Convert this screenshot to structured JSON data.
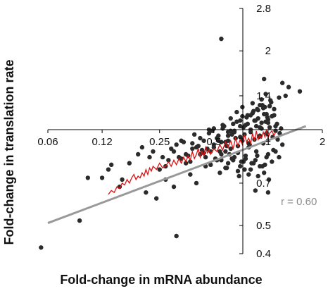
{
  "chart_data": {
    "type": "scatter",
    "title": "",
    "xlabel": "Fold-change in mRNA abundance",
    "ylabel": "Fold-change in translation rate",
    "x_scale": "log2",
    "y_scale": "log2",
    "xlim": [
      0.06,
      2
    ],
    "ylim": [
      0.4,
      2.8
    ],
    "x_ticks": [
      0.06,
      0.12,
      0.25,
      0.5,
      1,
      2
    ],
    "x_tick_labels": [
      "0.06",
      "0.12",
      "0.25",
      "0.5",
      "1",
      "2"
    ],
    "y_ticks": [
      0.4,
      0.5,
      0.7,
      1,
      1.4,
      2,
      2.8
    ],
    "y_tick_labels": [
      "0.4",
      "0.5",
      "0.7",
      "1",
      "1.4",
      "2",
      "2.8"
    ],
    "annotation": "r = 0.60",
    "grid": false,
    "colors": {
      "points": "#2b2b2b",
      "fit_line": "#999999",
      "running_mean": "#dd1111"
    },
    "fit_line": {
      "x": [
        0.06,
        1.62
      ],
      "y": [
        0.51,
        1.1
      ]
    },
    "running_mean": {
      "x": [
        0.13,
        0.135,
        0.14,
        0.145,
        0.15,
        0.155,
        0.16,
        0.165,
        0.17,
        0.175,
        0.18,
        0.185,
        0.19,
        0.195,
        0.2,
        0.205,
        0.21,
        0.215,
        0.22,
        0.225,
        0.23,
        0.24,
        0.25,
        0.26,
        0.27,
        0.28,
        0.29,
        0.3,
        0.31,
        0.32,
        0.33,
        0.34,
        0.35,
        0.36,
        0.37,
        0.38,
        0.39,
        0.4,
        0.41,
        0.42,
        0.43,
        0.44,
        0.45,
        0.46,
        0.47,
        0.48,
        0.5,
        0.52,
        0.54,
        0.56,
        0.58,
        0.6,
        0.62,
        0.64,
        0.66,
        0.68,
        0.7,
        0.72,
        0.74,
        0.76,
        0.78,
        0.8,
        0.82,
        0.84,
        0.86,
        0.88,
        0.9,
        0.92,
        0.94,
        0.96,
        0.98,
        1.0,
        1.02,
        1.05,
        1.08,
        1.1
      ],
      "y": [
        0.64,
        0.66,
        0.65,
        0.68,
        0.67,
        0.7,
        0.69,
        0.72,
        0.7,
        0.73,
        0.75,
        0.72,
        0.74,
        0.73,
        0.76,
        0.74,
        0.78,
        0.75,
        0.79,
        0.77,
        0.8,
        0.78,
        0.82,
        0.79,
        0.8,
        0.83,
        0.8,
        0.84,
        0.81,
        0.85,
        0.82,
        0.86,
        0.83,
        0.87,
        0.84,
        0.9,
        0.85,
        0.88,
        0.92,
        0.86,
        0.9,
        0.87,
        0.93,
        0.89,
        0.91,
        0.88,
        0.92,
        0.9,
        0.95,
        0.91,
        0.97,
        0.93,
        0.98,
        0.92,
        1.0,
        0.94,
        0.99,
        0.95,
        1.03,
        0.97,
        1.0,
        0.96,
        1.04,
        0.98,
        1.06,
        0.99,
        1.02,
        1.0,
        1.05,
        1.01,
        1.07,
        1.0,
        1.04,
        1.06,
        1.02,
        1.05
      ]
    },
    "points": {
      "x": [
        0.055,
        0.09,
        0.1,
        0.12,
        0.13,
        0.135,
        0.15,
        0.155,
        0.17,
        0.19,
        0.2,
        0.21,
        0.22,
        0.23,
        0.24,
        0.25,
        0.26,
        0.27,
        0.28,
        0.3,
        0.31,
        0.31,
        0.33,
        0.35,
        0.37,
        0.38,
        0.4,
        0.42,
        0.45,
        0.5,
        0.55,
        0.58,
        0.6,
        0.65,
        0.7,
        0.75,
        0.8,
        0.85,
        0.9,
        0.95,
        1.0,
        1.1,
        1.2,
        1.25,
        1.3,
        1.5,
        0.5,
        0.52,
        0.54,
        0.56,
        0.58,
        0.6,
        0.62,
        0.64,
        0.66,
        0.68,
        0.7,
        0.72,
        0.74,
        0.76,
        0.78,
        0.8,
        0.82,
        0.84,
        0.86,
        0.88,
        0.9,
        0.92,
        0.94,
        0.96,
        0.98,
        1.0,
        1.02,
        1.04,
        1.06,
        1.08,
        1.1,
        1.12,
        1.15,
        1.18,
        0.45,
        0.48,
        0.52,
        0.55,
        0.6,
        0.65,
        0.7,
        0.75,
        0.8,
        0.85,
        0.9,
        0.95,
        1.0,
        1.05,
        1.1,
        1.15,
        1.2,
        0.4,
        0.44,
        0.47,
        0.5,
        0.53,
        0.57,
        0.62,
        0.67,
        0.72,
        0.77,
        0.83,
        0.88,
        0.93,
        0.98,
        1.03,
        1.08,
        0.35,
        0.38,
        0.42,
        0.46,
        0.49,
        0.53,
        0.56,
        0.59,
        0.63,
        0.68,
        0.73,
        0.78,
        0.84,
        0.89,
        0.94,
        0.99,
        0.3,
        0.33,
        0.36,
        0.39,
        0.43,
        0.47,
        0.51,
        0.55,
        0.61,
        0.66,
        0.71,
        0.79,
        0.86,
        0.92,
        0.97,
        0.27,
        0.29,
        0.32,
        0.34,
        0.37,
        0.41,
        0.44,
        0.48,
        0.54,
        0.59,
        0.64,
        0.69,
        0.74,
        0.81,
        0.87,
        0.96,
        1.01,
        1.07,
        1.13,
        1.16,
        0.6,
        0.65,
        0.7,
        0.75,
        0.8,
        0.85,
        0.9,
        0.95,
        1.0,
        1.05,
        0.62,
        0.67,
        0.72,
        0.77,
        0.82,
        0.87,
        0.92,
        0.97,
        1.02,
        0.55,
        0.58,
        0.63,
        0.68,
        0.73,
        0.78,
        0.83,
        0.88,
        0.93,
        0.98
      ],
      "y": [
        0.42,
        0.52,
        0.73,
        0.73,
        0.78,
        0.81,
        0.68,
        0.72,
        0.82,
        0.88,
        0.93,
        0.65,
        0.86,
        0.9,
        0.62,
        0.78,
        0.86,
        0.72,
        0.84,
        0.68,
        0.95,
        0.46,
        0.85,
        0.88,
        0.75,
        0.92,
        0.7,
        0.88,
        0.8,
        0.93,
        2.2,
        0.9,
        1.02,
        1.05,
        1.1,
        0.85,
        1.2,
        0.66,
        1.3,
        1.6,
        0.65,
        1.1,
        1.55,
        1.4,
        1.5,
        1.45,
        0.95,
        1.0,
        0.9,
        1.08,
        0.97,
        1.05,
        0.92,
        1.12,
        1.0,
        0.94,
        1.15,
        0.98,
        1.03,
        1.18,
        0.93,
        1.07,
        1.22,
        0.99,
        1.1,
        1.25,
        1.02,
        1.13,
        0.96,
        1.28,
        1.04,
        1.16,
        1.09,
        1.33,
        1.01,
        1.2,
        1.06,
        1.12,
        1.38,
        1.08,
        0.86,
        0.9,
        0.84,
        0.88,
        0.82,
        0.86,
        0.8,
        0.87,
        0.78,
        0.84,
        0.8,
        0.76,
        0.88,
        0.83,
        0.9,
        0.86,
        0.95,
        0.93,
        0.98,
        1.04,
        1.08,
        1.02,
        1.1,
        1.06,
        1.14,
        1.19,
        1.12,
        1.24,
        1.17,
        1.3,
        1.21,
        1.35,
        1.26,
        0.82,
        0.96,
        1.0,
        0.92,
        1.06,
        0.98,
        1.11,
        0.94,
        1.03,
        0.89,
        1.09,
        0.96,
        1.15,
        1.01,
        1.27,
        1.18,
        0.9,
        0.98,
        0.87,
        1.03,
        0.91,
        1.07,
        0.85,
        0.97,
        0.88,
        1.0,
        0.83,
        0.95,
        0.9,
        1.08,
        1.14,
        0.8,
        0.92,
        0.86,
        0.97,
        0.83,
        0.94,
        0.89,
        0.81,
        0.76,
        0.79,
        0.84,
        0.74,
        0.78,
        0.82,
        0.87,
        0.81,
        0.72,
        0.91,
        0.99,
        1.04,
        0.98,
        1.06,
        1.01,
        1.11,
        1.05,
        1.15,
        1.09,
        1.21,
        1.13,
        1.19,
        1.17,
        1.23,
        1.28,
        1.2,
        1.32,
        1.26,
        1.36,
        1.42,
        1.29,
        0.84,
        0.79,
        0.85,
        0.77,
        0.83,
        0.75,
        0.82,
        0.74,
        0.8,
        0.86
      ]
    }
  }
}
